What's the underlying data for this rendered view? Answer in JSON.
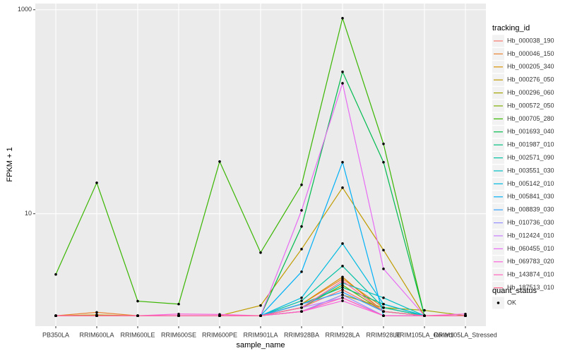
{
  "chart_data": {
    "type": "line",
    "x_label": "sample_name",
    "y_label": "FPKM + 1",
    "categories": [
      "PB350LA",
      "RRIM600LA",
      "RRIM600LE",
      "RRIM600SE",
      "RRIM600PE",
      "RRIM901LA",
      "RRIM928BA",
      "RRIM928LA",
      "RRIM928LE",
      "RRIM105LA_Control",
      "RRIM105LA_Stressed"
    ],
    "log_y": true,
    "ylim": [
      0.79,
      1150
    ],
    "yticks": [
      10,
      1000
    ],
    "grid": true,
    "legend_title": "tracking_id",
    "legend_position": "right",
    "point_legend": {
      "title": "quant_status",
      "labels": [
        "OK"
      ],
      "color": "#000000"
    },
    "series": [
      {
        "name": "Hb_000038_190",
        "color": "#F8766D",
        "values": [
          1,
          1,
          1,
          1,
          1,
          1,
          1.2,
          1.8,
          1.1,
          1,
          1
        ]
      },
      {
        "name": "Hb_000046_150",
        "color": "#EA8331",
        "values": [
          1,
          1.08,
          1,
          1,
          1,
          1,
          1.3,
          2.3,
          1.2,
          1,
          1
        ]
      },
      {
        "name": "Hb_000205_340",
        "color": "#D89000",
        "values": [
          1,
          1,
          1,
          1,
          1,
          1,
          1.3,
          2.4,
          1.1,
          1,
          1
        ]
      },
      {
        "name": "Hb_000276_050",
        "color": "#C09B00",
        "values": [
          1,
          1.02,
          1,
          1,
          1,
          1.26,
          4.5,
          18,
          4.4,
          1,
          1
        ]
      },
      {
        "name": "Hb_000296_060",
        "color": "#A3A500",
        "values": [
          1,
          1,
          1,
          1,
          1,
          1,
          1.1,
          1.6,
          1.2,
          1.13,
          1
        ]
      },
      {
        "name": "Hb_000572_050",
        "color": "#7CAE00",
        "values": [
          1,
          1,
          1,
          1,
          1,
          1,
          1.2,
          2.0,
          1.1,
          1,
          1
        ]
      },
      {
        "name": "Hb_000705_280",
        "color": "#39B600",
        "values": [
          2.54,
          20.1,
          1.39,
          1.3,
          32.5,
          4.16,
          19.2,
          826,
          48.4,
          1,
          1
        ]
      },
      {
        "name": "Hb_001693_040",
        "color": "#00BB4E",
        "values": [
          1,
          1,
          1,
          1,
          1,
          1,
          7.5,
          246,
          32,
          1,
          1
        ]
      },
      {
        "name": "Hb_001987_010",
        "color": "#00BF7D",
        "values": [
          1,
          1,
          1,
          1,
          1,
          1,
          1.3,
          1.9,
          1.3,
          1,
          1
        ]
      },
      {
        "name": "Hb_002571_090",
        "color": "#00C1A3",
        "values": [
          1,
          1,
          1,
          1,
          1,
          1,
          1.4,
          3.07,
          1.2,
          1,
          1
        ]
      },
      {
        "name": "Hb_003551_030",
        "color": "#00BFC4",
        "values": [
          1,
          1,
          1,
          1,
          1,
          1,
          1.2,
          2.1,
          1.5,
          1,
          1
        ]
      },
      {
        "name": "Hb_005142_010",
        "color": "#00BAE0",
        "values": [
          1,
          1,
          1,
          1,
          1,
          1,
          1.5,
          5.1,
          1.3,
          1,
          1
        ]
      },
      {
        "name": "Hb_005841_030",
        "color": "#00B0F6",
        "values": [
          1,
          1,
          1,
          1,
          1,
          1,
          2.7,
          32,
          1,
          1,
          1
        ]
      },
      {
        "name": "Hb_008839_030",
        "color": "#35A2FF",
        "values": [
          1,
          1,
          1,
          1,
          1,
          1,
          1.3,
          1.7,
          1.1,
          1,
          1
        ]
      },
      {
        "name": "Hb_010736_030",
        "color": "#9590FF",
        "values": [
          1,
          1,
          1,
          1,
          1,
          1,
          1.1,
          1.6,
          1,
          1,
          1
        ]
      },
      {
        "name": "Hb_012424_010",
        "color": "#C77CFF",
        "values": [
          1,
          1,
          1,
          1,
          1,
          1,
          1.2,
          1.5,
          1,
          1,
          1
        ]
      },
      {
        "name": "Hb_060455_010",
        "color": "#E76BF3",
        "values": [
          1,
          1,
          1,
          1,
          1,
          1,
          10.8,
          190,
          2.88,
          1,
          1
        ]
      },
      {
        "name": "Hb_069783_020",
        "color": "#FA62DB",
        "values": [
          1,
          1,
          1,
          1.04,
          1.03,
          1,
          1.1,
          1.4,
          1,
          1,
          1.04
        ]
      },
      {
        "name": "Hb_143874_010",
        "color": "#FF62BC",
        "values": [
          1,
          1,
          1,
          1,
          1,
          1,
          1.1,
          1.5,
          1,
          1,
          1
        ]
      },
      {
        "name": "Hb_187513_010",
        "color": "#FF6C91",
        "values": [
          1,
          1,
          1,
          1,
          1,
          1,
          1.2,
          2.2,
          1.1,
          1,
          1
        ]
      }
    ]
  }
}
